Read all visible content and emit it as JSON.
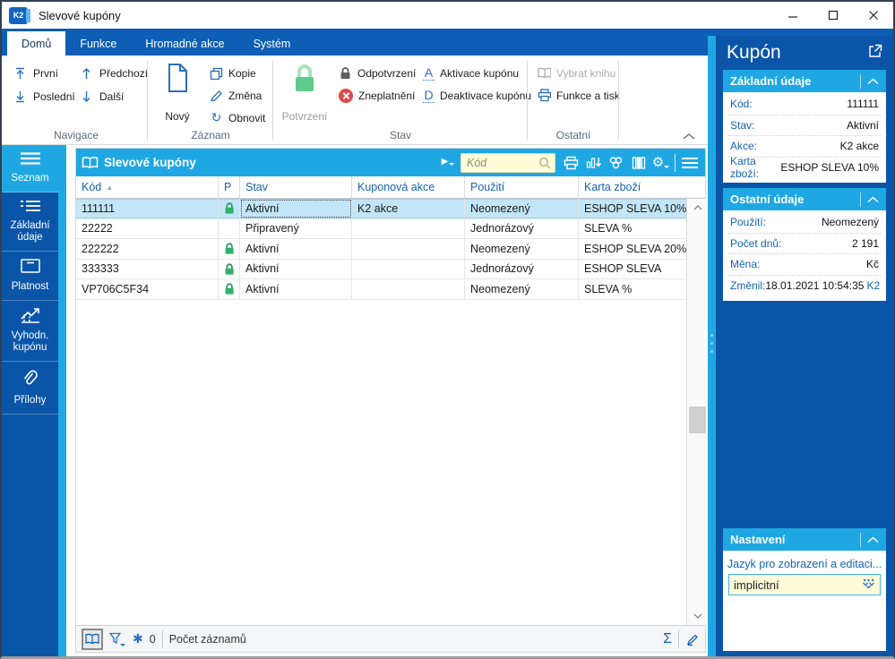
{
  "window": {
    "title": "Slevové kupóny",
    "logo_text": "K2"
  },
  "tabs": [
    {
      "label": "Domů",
      "active": true
    },
    {
      "label": "Funkce",
      "active": false
    },
    {
      "label": "Hromadné akce",
      "active": false
    },
    {
      "label": "Systém",
      "active": false
    }
  ],
  "ribbon": {
    "nav": {
      "group": "Navigace",
      "first": "První",
      "last": "Poslední",
      "prev": "Předchozí",
      "next": "Další"
    },
    "record": {
      "group": "Záznam",
      "new": "Nový",
      "copy": "Kopie",
      "change": "Změna",
      "refresh": "Obnovit"
    },
    "state": {
      "group": "Stav",
      "confirm": "Potvrzení",
      "unconfirm": "Odpotvrzení",
      "invalidate": "Zneplatnění",
      "activate": "Aktivace kupónu",
      "deactivate": "Deaktivace kupónu",
      "activate_letter": "A",
      "deactivate_letter": "D"
    },
    "other": {
      "group": "Ostatní",
      "select_book": "Vybrat knihu",
      "print": "Funkce a tisk"
    }
  },
  "sidebar": {
    "items": [
      {
        "label": "Seznam",
        "icon": "menu-icon",
        "active": true
      },
      {
        "label": "Základní údaje",
        "icon": "list-icon",
        "active": false
      },
      {
        "label": "Platnost",
        "icon": "box-icon",
        "active": false
      },
      {
        "label": "Vyhodn. kupónu",
        "icon": "chart-icon",
        "active": false
      },
      {
        "label": "Přílohy",
        "icon": "paperclip-icon",
        "active": false
      }
    ]
  },
  "table": {
    "title": "Slevové kupóny",
    "search_placeholder": "Kód",
    "toolbar_icons": [
      "print-icon",
      "chart-icon",
      "related-icon",
      "columns-icon",
      "settings-icon",
      "menu-icon"
    ],
    "columns": [
      {
        "label": "Kód",
        "sorted": "asc"
      },
      {
        "label": "P",
        "sorted": ""
      },
      {
        "label": "Stav",
        "sorted": ""
      },
      {
        "label": "Kuponová akce",
        "sorted": ""
      },
      {
        "label": "Použití",
        "sorted": ""
      },
      {
        "label": "Karta zboží",
        "sorted": ""
      }
    ],
    "rows": [
      {
        "code": "111111",
        "locked": true,
        "state": "Aktivní",
        "action": "K2 akce",
        "usage": "Neomezený",
        "card": "ESHOP SLEVA 10%",
        "selected": true
      },
      {
        "code": "22222",
        "locked": false,
        "state": "Připravený",
        "action": "",
        "usage": "Jednorázový",
        "card": "SLEVA %",
        "selected": false
      },
      {
        "code": "222222",
        "locked": true,
        "state": "Aktivní",
        "action": "",
        "usage": "Neomezený",
        "card": "ESHOP SLEVA 20%",
        "selected": false
      },
      {
        "code": "333333",
        "locked": true,
        "state": "Aktivní",
        "action": "",
        "usage": "Jednorázový",
        "card": "ESHOP SLEVA",
        "selected": false
      },
      {
        "code": "VP706C5F34",
        "locked": true,
        "state": "Aktivní",
        "action": "",
        "usage": "Neomezený",
        "card": "SLEVA %",
        "selected": false
      }
    ],
    "status": {
      "snowflake_count": "0",
      "records_label": "Počet záznamů"
    }
  },
  "panel": {
    "title": "Kupón",
    "sections": [
      {
        "title": "Základní údaje",
        "rows": [
          {
            "label": "Kód:",
            "value": "111111"
          },
          {
            "label": "Stav:",
            "value": "Aktivní"
          },
          {
            "label": "Akce:",
            "value": "K2 akce"
          },
          {
            "label": "Karta zboží:",
            "value": "ESHOP SLEVA 10%"
          }
        ]
      },
      {
        "title": "Ostatní údaje",
        "rows": [
          {
            "label": "Použití:",
            "value": "Neomezený"
          },
          {
            "label": "Počet dnů:",
            "value": "2 191"
          },
          {
            "label": "Měna:",
            "value": "Kč"
          },
          {
            "label": "Změnil:",
            "value": "18.01.2021 10:54:35",
            "link": "K2"
          }
        ]
      },
      {
        "title": "Nastavení",
        "setting_label": "Jazyk pro zobrazení a editaci...",
        "setting_value": "implicitní"
      }
    ]
  },
  "colors": {
    "accent_cyan": "#1fa7e3",
    "dark_blue": "#0a55a8",
    "ribbon_blue": "#0d5eb4",
    "selection_blue": "#c2e5f7",
    "input_yellow": "#fdfbd8",
    "lock_green": "#34b06e",
    "invalid_red": "#e0484e",
    "label_blue": "#1563af"
  }
}
